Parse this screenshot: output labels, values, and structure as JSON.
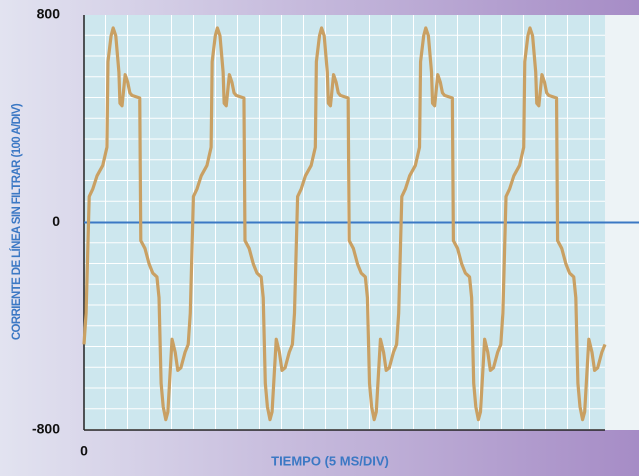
{
  "chart_data": {
    "type": "line",
    "y_label": "CORRIENTE DE LÍNEA SIN FILTRAR (100 A/DIV)",
    "x_label": "TIEMPO (5 MS/DIV)",
    "xlim": [
      0,
      100
    ],
    "xticks": [
      0
    ],
    "ylim": [
      -800,
      800
    ],
    "yticks": [
      800,
      0,
      -800
    ],
    "x": [
      0,
      0.4,
      1,
      1.7,
      2.5,
      3.6,
      4.4,
      4.6,
      5.2,
      5.6,
      6.1,
      6.7,
      6.9,
      7.3,
      7.9,
      8.4,
      8.8,
      9.2,
      10.7,
      10.9,
      11.7,
      12.5,
      13.2,
      14,
      14.4,
      14.8,
      15.2,
      15.7,
      16.1,
      16.9,
      17.5,
      18,
      18.6,
      19.4,
      20,
      20.4,
      21,
      21.7,
      22.5,
      23.6,
      24.4,
      24.6,
      25.2,
      25.6,
      26.1,
      26.7,
      26.9,
      27.3,
      27.9,
      28.4,
      28.8,
      29.2,
      30.7,
      30.9,
      31.7,
      32.5,
      33.2,
      34,
      34.4,
      34.8,
      35.2,
      35.7,
      36.1,
      36.9,
      37.5,
      38,
      38.6,
      39.4,
      40,
      40.4,
      41,
      41.7,
      42.5,
      43.6,
      44.4,
      44.6,
      45.2,
      45.6,
      46.1,
      46.7,
      46.9,
      47.3,
      47.9,
      48.4,
      48.8,
      49.2,
      50.7,
      50.9,
      51.7,
      52.5,
      53.2,
      54,
      54.4,
      54.8,
      55.2,
      55.7,
      56.1,
      56.9,
      57.5,
      58,
      58.6,
      59.4,
      60,
      60.4,
      61,
      61.7,
      62.5,
      63.6,
      64.4,
      64.6,
      65.2,
      65.6,
      66.1,
      66.7,
      66.9,
      67.3,
      67.9,
      68.4,
      68.8,
      69.2,
      70.7,
      70.9,
      71.7,
      72.5,
      73.2,
      74,
      74.4,
      74.8,
      75.2,
      75.7,
      76.1,
      76.9,
      77.5,
      78,
      78.6,
      79.4,
      80,
      80.4,
      81,
      81.7,
      82.5,
      83.6,
      84.4,
      84.6,
      85.2,
      85.6,
      86.1,
      86.7,
      86.9,
      87.3,
      87.9,
      88.4,
      88.8,
      89.2,
      90.7,
      90.9,
      91.7,
      92.5,
      93.2,
      94,
      94.4,
      94.8,
      95.2,
      95.7,
      96.1,
      96.9,
      97.5,
      98,
      98.6,
      99.4,
      100
    ],
    "series": [
      {
        "color": "#c9a063",
        "values": [
          -470,
          -350,
          100,
          130,
          180,
          220,
          290,
          620,
          720,
          750,
          720,
          580,
          460,
          450,
          570,
          540,
          500,
          490,
          480,
          -70,
          -100,
          -160,
          -195,
          -210,
          -290,
          -620,
          -710,
          -760,
          -730,
          -450,
          -500,
          -570,
          -560,
          -500,
          -470,
          -350,
          100,
          130,
          180,
          220,
          290,
          620,
          720,
          750,
          720,
          580,
          460,
          450,
          570,
          540,
          500,
          490,
          480,
          -70,
          -100,
          -160,
          -195,
          -210,
          -290,
          -620,
          -710,
          -760,
          -730,
          -450,
          -500,
          -570,
          -560,
          -500,
          -470,
          -350,
          100,
          130,
          180,
          220,
          290,
          620,
          720,
          750,
          720,
          580,
          460,
          450,
          570,
          540,
          500,
          490,
          480,
          -70,
          -100,
          -160,
          -195,
          -210,
          -290,
          -620,
          -710,
          -760,
          -730,
          -450,
          -500,
          -570,
          -560,
          -500,
          -470,
          -350,
          100,
          130,
          180,
          220,
          290,
          620,
          720,
          750,
          720,
          580,
          460,
          450,
          570,
          540,
          500,
          490,
          480,
          -70,
          -100,
          -160,
          -195,
          -210,
          -290,
          -620,
          -710,
          -760,
          -730,
          -450,
          -500,
          -570,
          -560,
          -500,
          -470,
          -350,
          100,
          130,
          180,
          220,
          290,
          620,
          720,
          750,
          720,
          580,
          460,
          450,
          570,
          540,
          500,
          490,
          480,
          -70,
          -100,
          -160,
          -195,
          -210,
          -290,
          -620,
          -710,
          -760,
          -730,
          -450,
          -500,
          -570,
          -560,
          -500,
          -470
        ]
      }
    ],
    "zero_line_color": "#3b78c4"
  }
}
